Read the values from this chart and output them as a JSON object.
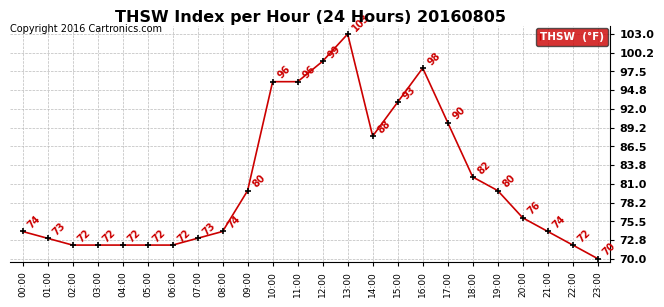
{
  "title": "THSW Index per Hour (24 Hours) 20160805",
  "copyright": "Copyright 2016 Cartronics.com",
  "legend_label": "THSW  (°F)",
  "hours": [
    0,
    1,
    2,
    3,
    4,
    5,
    6,
    7,
    8,
    9,
    10,
    11,
    12,
    13,
    14,
    15,
    16,
    17,
    18,
    19,
    20,
    21,
    22,
    23
  ],
  "values": [
    74,
    73,
    72,
    72,
    72,
    72,
    72,
    73,
    74,
    80,
    96,
    96,
    99,
    103,
    88,
    93,
    98,
    90,
    82,
    80,
    76,
    74,
    72,
    70
  ],
  "xlabels": [
    "00:00",
    "01:00",
    "02:00",
    "03:00",
    "04:00",
    "05:00",
    "06:00",
    "07:00",
    "08:00",
    "09:00",
    "10:00",
    "11:00",
    "12:00",
    "13:00",
    "14:00",
    "15:00",
    "16:00",
    "17:00",
    "18:00",
    "19:00",
    "20:00",
    "21:00",
    "22:00",
    "23:00"
  ],
  "ylim": [
    69.5,
    104.2
  ],
  "yticks": [
    70.0,
    72.8,
    75.5,
    78.2,
    81.0,
    83.8,
    86.5,
    89.2,
    92.0,
    94.8,
    97.5,
    100.2,
    103.0
  ],
  "ytick_labels": [
    "70.0",
    "72.8",
    "75.5",
    "78.2",
    "81.0",
    "83.8",
    "86.5",
    "89.2",
    "92.0",
    "94.8",
    "97.5",
    "100.2",
    "103.0"
  ],
  "line_color": "#cc0000",
  "marker_color": "#000000",
  "label_color": "#cc0000",
  "legend_bg": "#cc0000",
  "legend_text_color": "#ffffff",
  "bg_color": "#ffffff",
  "grid_color": "#bbbbbb",
  "title_color": "#000000",
  "copyright_color": "#000000",
  "title_fontsize": 11.5,
  "copyright_fontsize": 7,
  "label_fontsize": 7,
  "ytick_fontsize": 8,
  "xtick_fontsize": 6.5
}
